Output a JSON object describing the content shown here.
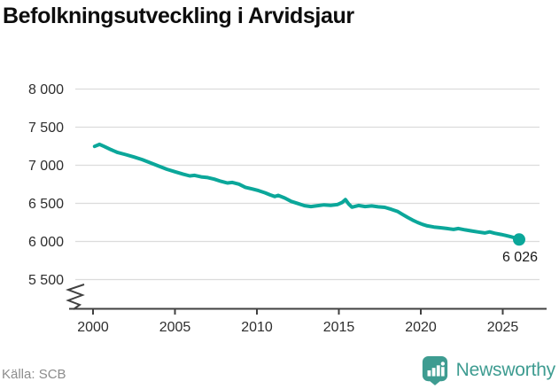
{
  "header": {
    "title": "Befolkningsutveckling i Arvidsjaur"
  },
  "footer": {
    "source": "Källa: SCB",
    "brand": "Newsworthy"
  },
  "colors": {
    "line": "#0ba79a",
    "end_dot": "#0ba79a",
    "grid": "#dcdcdc",
    "axis": "#404040",
    "tick_text": "#2e2e2e",
    "annotation_text": "#1a1a1a",
    "title_text": "#0d0d0d",
    "source_text": "#8c8c8c",
    "brand_teal": "#3e9c91"
  },
  "chart_data": {
    "type": "line",
    "title": "Befolkningsutveckling i Arvidsjaur",
    "xlabel": "",
    "ylabel": "",
    "grid": "horizontal",
    "legend": "none",
    "axis_break_bottom_left": true,
    "xlim": [
      1998.9,
      2027.4
    ],
    "ylim_display": [
      5500,
      8000
    ],
    "x_ticks": [
      {
        "value": 2000,
        "label": "2000"
      },
      {
        "value": 2005,
        "label": "2005"
      },
      {
        "value": 2010,
        "label": "2010"
      },
      {
        "value": 2015,
        "label": "2015"
      },
      {
        "value": 2020,
        "label": "2020"
      },
      {
        "value": 2025,
        "label": "2025"
      }
    ],
    "y_ticks": [
      {
        "value": 5500,
        "label": "5 500"
      },
      {
        "value": 6000,
        "label": "6 000"
      },
      {
        "value": 6500,
        "label": "6 500"
      },
      {
        "value": 7000,
        "label": "7 000"
      },
      {
        "value": 7500,
        "label": "7 500"
      },
      {
        "value": 8000,
        "label": "8 000"
      }
    ],
    "series": [
      {
        "name": "Befolkning",
        "color": "#0ba79a",
        "points": [
          [
            2000.1,
            7248
          ],
          [
            2000.4,
            7275
          ],
          [
            2000.7,
            7245
          ],
          [
            2001.1,
            7205
          ],
          [
            2001.5,
            7168
          ],
          [
            2002.0,
            7140
          ],
          [
            2002.5,
            7108
          ],
          [
            2003.0,
            7075
          ],
          [
            2003.5,
            7032
          ],
          [
            2004.0,
            6990
          ],
          [
            2004.5,
            6948
          ],
          [
            2005.0,
            6915
          ],
          [
            2005.5,
            6882
          ],
          [
            2005.9,
            6860
          ],
          [
            2006.2,
            6868
          ],
          [
            2006.6,
            6848
          ],
          [
            2007.0,
            6838
          ],
          [
            2007.4,
            6818
          ],
          [
            2007.8,
            6790
          ],
          [
            2008.2,
            6768
          ],
          [
            2008.5,
            6774
          ],
          [
            2008.9,
            6752
          ],
          [
            2009.3,
            6710
          ],
          [
            2009.7,
            6690
          ],
          [
            2010.1,
            6668
          ],
          [
            2010.5,
            6638
          ],
          [
            2010.8,
            6612
          ],
          [
            2011.1,
            6590
          ],
          [
            2011.3,
            6605
          ],
          [
            2011.7,
            6570
          ],
          [
            2012.1,
            6525
          ],
          [
            2012.5,
            6498
          ],
          [
            2012.9,
            6470
          ],
          [
            2013.3,
            6458
          ],
          [
            2013.7,
            6470
          ],
          [
            2014.1,
            6480
          ],
          [
            2014.5,
            6474
          ],
          [
            2014.9,
            6484
          ],
          [
            2015.2,
            6512
          ],
          [
            2015.4,
            6550
          ],
          [
            2015.6,
            6492
          ],
          [
            2015.8,
            6450
          ],
          [
            2016.2,
            6472
          ],
          [
            2016.6,
            6458
          ],
          [
            2017.0,
            6466
          ],
          [
            2017.4,
            6455
          ],
          [
            2017.8,
            6448
          ],
          [
            2018.2,
            6422
          ],
          [
            2018.6,
            6392
          ],
          [
            2018.9,
            6352
          ],
          [
            2019.2,
            6315
          ],
          [
            2019.5,
            6280
          ],
          [
            2019.8,
            6250
          ],
          [
            2020.1,
            6225
          ],
          [
            2020.4,
            6205
          ],
          [
            2020.8,
            6190
          ],
          [
            2021.2,
            6180
          ],
          [
            2021.6,
            6170
          ],
          [
            2022.0,
            6158
          ],
          [
            2022.3,
            6170
          ],
          [
            2022.7,
            6152
          ],
          [
            2023.1,
            6138
          ],
          [
            2023.5,
            6124
          ],
          [
            2023.9,
            6112
          ],
          [
            2024.2,
            6126
          ],
          [
            2024.5,
            6108
          ],
          [
            2024.9,
            6092
          ],
          [
            2025.2,
            6078
          ],
          [
            2025.5,
            6062
          ],
          [
            2025.8,
            6044
          ],
          [
            2026.0,
            6026
          ]
        ]
      }
    ],
    "end_label": {
      "text": "6 026",
      "year": 2026.0,
      "value": 6026
    }
  }
}
